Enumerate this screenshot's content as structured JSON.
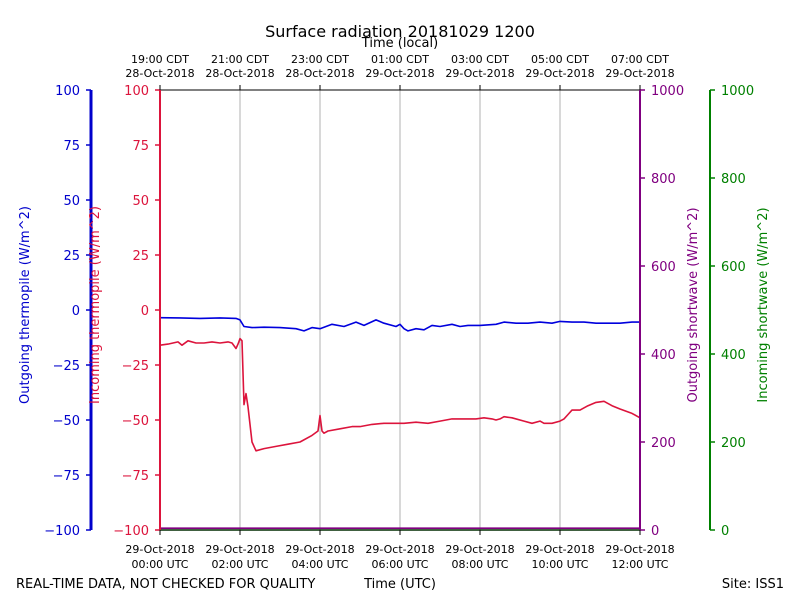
{
  "chart_data": {
    "type": "line",
    "title": "Surface radiation 20181029 1200",
    "top_axis_label": "Time (local)",
    "bottom_axis_label": "Time (UTC)",
    "x_unit": "hours since 2018-10-29 00:00 UTC",
    "xlim": [
      0,
      12
    ],
    "top_ticks": [
      {
        "x": 0,
        "time": "19:00 CDT",
        "date": "28-Oct-2018"
      },
      {
        "x": 2,
        "time": "21:00 CDT",
        "date": "28-Oct-2018"
      },
      {
        "x": 4,
        "time": "23:00 CDT",
        "date": "28-Oct-2018"
      },
      {
        "x": 6,
        "time": "01:00 CDT",
        "date": "29-Oct-2018"
      },
      {
        "x": 8,
        "time": "03:00 CDT",
        "date": "29-Oct-2018"
      },
      {
        "x": 10,
        "time": "05:00 CDT",
        "date": "29-Oct-2018"
      },
      {
        "x": 12,
        "time": "07:00 CDT",
        "date": "29-Oct-2018"
      }
    ],
    "bottom_ticks": [
      {
        "x": 0,
        "date": "29-Oct-2018",
        "time": "00:00 UTC"
      },
      {
        "x": 2,
        "date": "29-Oct-2018",
        "time": "02:00 UTC"
      },
      {
        "x": 4,
        "date": "29-Oct-2018",
        "time": "04:00 UTC"
      },
      {
        "x": 6,
        "date": "29-Oct-2018",
        "time": "06:00 UTC"
      },
      {
        "x": 8,
        "date": "29-Oct-2018",
        "time": "08:00 UTC"
      },
      {
        "x": 10,
        "date": "29-Oct-2018",
        "time": "10:00 UTC"
      },
      {
        "x": 12,
        "date": "29-Oct-2018",
        "time": "12:00 UTC"
      }
    ],
    "axes": [
      {
        "id": "outgoing_thermopile",
        "label": "Outgoing thermopile (W/m^2)",
        "color": "#0000cc",
        "ylim": [
          -100,
          100
        ],
        "ticks": [
          -100,
          -75,
          -50,
          -25,
          0,
          25,
          50,
          75,
          100
        ]
      },
      {
        "id": "incoming_thermopile",
        "label": "Incoming thermopile (W/m^2)",
        "color": "#dc143c",
        "ylim": [
          -100,
          100
        ],
        "ticks": [
          -100,
          -75,
          -50,
          -25,
          0,
          25,
          50,
          75,
          100
        ]
      },
      {
        "id": "outgoing_shortwave",
        "label": "Outgoing shortwave (W/m^2)",
        "color": "#800080",
        "ylim": [
          0,
          1000
        ],
        "ticks": [
          0,
          200,
          400,
          600,
          800,
          1000
        ]
      },
      {
        "id": "incoming_shortwave",
        "label": "Incoming shortwave (W/m^2)",
        "color": "#008000",
        "ylim": [
          0,
          1000
        ],
        "ticks": [
          0,
          200,
          400,
          600,
          800,
          1000
        ]
      }
    ],
    "series": [
      {
        "name": "Outgoing thermopile",
        "axis": "outgoing_thermopile",
        "color": "#0000dd",
        "x": [
          0,
          0.5,
          1.0,
          1.5,
          1.9,
          2.0,
          2.1,
          2.3,
          2.6,
          3.0,
          3.4,
          3.6,
          3.8,
          4.0,
          4.3,
          4.6,
          4.9,
          5.1,
          5.4,
          5.6,
          5.9,
          6.0,
          6.1,
          6.2,
          6.4,
          6.6,
          6.8,
          7.0,
          7.3,
          7.5,
          7.7,
          8.0,
          8.4,
          8.6,
          8.9,
          9.2,
          9.5,
          9.8,
          10.0,
          10.3,
          10.6,
          10.9,
          11.2,
          11.5,
          11.8,
          12.0
        ],
        "y": [
          -3.5,
          -3.6,
          -3.8,
          -3.6,
          -3.8,
          -4.5,
          -7.5,
          -8.0,
          -7.8,
          -8.0,
          -8.5,
          -9.5,
          -8.0,
          -8.5,
          -6.5,
          -7.5,
          -5.5,
          -7.0,
          -4.5,
          -6.0,
          -7.5,
          -6.5,
          -8.5,
          -9.5,
          -8.5,
          -9.0,
          -7.0,
          -7.5,
          -6.5,
          -7.5,
          -7.0,
          -7.0,
          -6.5,
          -5.5,
          -6.0,
          -6.0,
          -5.5,
          -6.0,
          -5.2,
          -5.5,
          -5.5,
          -6.0,
          -6.0,
          -6.0,
          -5.5,
          -5.5
        ]
      },
      {
        "name": "Incoming thermopile",
        "axis": "incoming_thermopile",
        "color": "#dc143c",
        "x": [
          0,
          0.2,
          0.45,
          0.55,
          0.7,
          0.9,
          1.1,
          1.3,
          1.5,
          1.7,
          1.8,
          1.9,
          1.95,
          2.0,
          2.05,
          2.1,
          2.15,
          2.2,
          2.25,
          2.3,
          2.4,
          2.6,
          2.9,
          3.2,
          3.5,
          3.8,
          3.95,
          4.0,
          4.05,
          4.1,
          4.2,
          4.5,
          4.8,
          5.0,
          5.3,
          5.6,
          5.9,
          6.1,
          6.4,
          6.7,
          7.0,
          7.3,
          7.6,
          7.9,
          8.1,
          8.3,
          8.4,
          8.5,
          8.6,
          8.8,
          9.1,
          9.3,
          9.5,
          9.6,
          9.8,
          10.0,
          10.1,
          10.2,
          10.3,
          10.5,
          10.7,
          10.9,
          11.1,
          11.3,
          11.5,
          11.8,
          12.0
        ],
        "y": [
          -16,
          -15.5,
          -14.5,
          -16,
          -14,
          -15,
          -15,
          -14.5,
          -15,
          -14.5,
          -15,
          -17.5,
          -15.5,
          -13,
          -14,
          -43,
          -38,
          -44,
          -52,
          -60,
          -64,
          -63,
          -62,
          -61,
          -60,
          -57,
          -55,
          -48,
          -55,
          -56,
          -55,
          -54,
          -53,
          -53,
          -52,
          -51.5,
          -51.5,
          -51.5,
          -51,
          -51.5,
          -50.5,
          -49.5,
          -49.5,
          -49.5,
          -49,
          -49.5,
          -50,
          -49.5,
          -48.5,
          -49,
          -50.5,
          -51.5,
          -50.5,
          -51.5,
          -51.5,
          -50.5,
          -49.5,
          -47.5,
          -45.5,
          -45.5,
          -43.5,
          -42,
          -41.5,
          -43.5,
          -45,
          -47,
          -49
        ]
      },
      {
        "name": "Outgoing shortwave",
        "axis": "outgoing_shortwave",
        "color": "#800080",
        "x": [
          0,
          2,
          4,
          6,
          8,
          10,
          12
        ],
        "y": [
          4,
          4,
          4,
          4,
          4,
          4,
          4
        ]
      },
      {
        "name": "Incoming shortwave",
        "axis": "incoming_shortwave",
        "color": "#008000",
        "x": [
          0,
          2,
          4,
          6,
          8,
          10,
          12
        ],
        "y": [
          0,
          0,
          0,
          0,
          0,
          0,
          0
        ]
      }
    ],
    "grid": "vertical",
    "legend": "none"
  },
  "footer": {
    "left": "REAL-TIME DATA, NOT CHECKED FOR QUALITY",
    "center": "Time (UTC)",
    "right": "Site: ISS1"
  }
}
